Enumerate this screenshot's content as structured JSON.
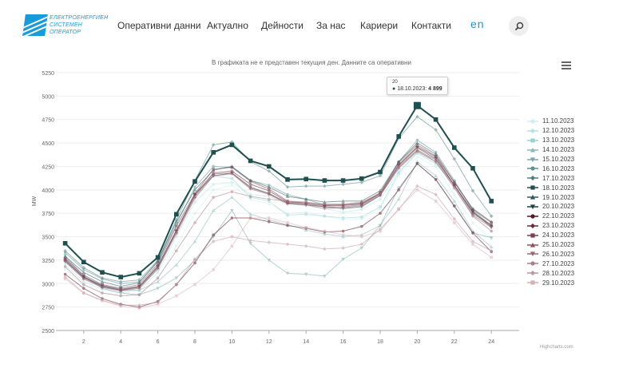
{
  "header": {
    "logo_lines": [
      "ЕЛЕКТРОЕНЕРГИЕН",
      "СИСТЕМЕН",
      "ОПЕРАТОР"
    ],
    "nav": [
      {
        "label": "Оперативни данни"
      },
      {
        "label": "Актуално"
      },
      {
        "label": "Дейности"
      },
      {
        "label": "За нас"
      },
      {
        "label": "Кариери"
      },
      {
        "label": "Контакти"
      }
    ],
    "lang": "en"
  },
  "chart": {
    "credit": "Highcharts.com"
  },
  "tooltip": {
    "header": "20",
    "series": "18.10.2023:",
    "value": "4 899"
  },
  "chart_data": {
    "type": "line",
    "title": "В графиката не е представен текущия ден. Данните са оперативни",
    "ylabel": "MW",
    "xlabel": "",
    "ylim": [
      2500,
      5250
    ],
    "yticks": [
      2500,
      2750,
      3000,
      3250,
      3500,
      3750,
      4000,
      4250,
      4500,
      4750,
      5000,
      5250
    ],
    "xlim": [
      0.5,
      25.5
    ],
    "xticks": [
      2,
      4,
      6,
      8,
      10,
      12,
      14,
      16,
      18,
      20,
      22,
      24
    ],
    "x": [
      1,
      2,
      3,
      4,
      5,
      6,
      7,
      8,
      9,
      10,
      11,
      12,
      13,
      14,
      15,
      16,
      17,
      18,
      19,
      20,
      21,
      22,
      23,
      24
    ],
    "legend": "right",
    "highlight": "18.10.2023",
    "series": [
      {
        "name": "11.10.2023",
        "color": "#cdeff0",
        "marker": "circle",
        "values": [
          3150,
          2980,
          2900,
          2870,
          2890,
          3050,
          3400,
          3750,
          4000,
          4050,
          3900,
          3850,
          3750,
          3760,
          3720,
          3680,
          3690,
          3800,
          4150,
          4350,
          4250,
          3950,
          3650,
          3480
        ]
      },
      {
        "name": "12.10.2023",
        "color": "#b3e2e4",
        "marker": "diamond",
        "values": [
          3200,
          3020,
          2940,
          2900,
          2930,
          3120,
          3500,
          3870,
          4060,
          4080,
          3950,
          3930,
          3850,
          3830,
          3800,
          3760,
          3790,
          3900,
          4200,
          4400,
          4300,
          4050,
          3720,
          3560
        ]
      },
      {
        "name": "13.10.2023",
        "color": "#98d3d5",
        "marker": "square",
        "values": [
          3250,
          3050,
          2960,
          2930,
          2950,
          3150,
          3550,
          3920,
          4150,
          4120,
          3920,
          3880,
          3730,
          3740,
          3720,
          3700,
          3710,
          3820,
          4180,
          4390,
          4280,
          4050,
          3740,
          3620
        ]
      },
      {
        "name": "14.10.2023",
        "color": "#8ab9bd",
        "marker": "triangle",
        "values": [
          3280,
          3080,
          2980,
          2930,
          2930,
          3020,
          3200,
          3450,
          3780,
          3920,
          3740,
          3680,
          3630,
          3570,
          3530,
          3500,
          3520,
          3620,
          3900,
          4300,
          4150,
          3880,
          3560,
          3390
        ]
      },
      {
        "name": "15.10.2023",
        "color": "#7aa8ab",
        "marker": "triangle-down",
        "values": [
          3300,
          3080,
          2950,
          2900,
          2880,
          2950,
          3060,
          3250,
          3500,
          3780,
          3430,
          3250,
          3110,
          3100,
          3080,
          3260,
          3380,
          3620,
          4020,
          4280,
          4110,
          3820,
          3540,
          3490
        ]
      },
      {
        "name": "16.10.2023",
        "color": "#5e9193",
        "marker": "circle",
        "values": [
          3330,
          3150,
          3050,
          3000,
          3020,
          3230,
          3630,
          4030,
          4250,
          4240,
          4100,
          4050,
          3950,
          3900,
          3840,
          3830,
          3850,
          3960,
          4300,
          4530,
          4400,
          4100,
          3780,
          3620
        ]
      },
      {
        "name": "17.10.2023",
        "color": "#4a8082",
        "marker": "diamond",
        "values": [
          3350,
          3170,
          3060,
          3020,
          3040,
          3250,
          3680,
          4100,
          4480,
          4510,
          4300,
          4200,
          4030,
          4040,
          4040,
          4060,
          4080,
          4150,
          4550,
          4780,
          4640,
          4330,
          3990,
          3720
        ]
      },
      {
        "name": "18.10.2023",
        "color": "#1f4f4f",
        "marker": "square",
        "values": [
          3430,
          3230,
          3120,
          3070,
          3110,
          3280,
          3740,
          4090,
          4400,
          4480,
          4310,
          4250,
          4110,
          4115,
          4100,
          4100,
          4120,
          4190,
          4570,
          4899,
          4750,
          4450,
          4230,
          3880
        ]
      },
      {
        "name": "19.10.2023",
        "color": "#2a5c5e",
        "marker": "triangle",
        "values": [
          3290,
          3120,
          3020,
          2970,
          3010,
          3240,
          3660,
          4000,
          4210,
          4250,
          4100,
          4030,
          3930,
          3900,
          3870,
          3880,
          3880,
          3990,
          4300,
          4500,
          4380,
          4080,
          3800,
          3660
        ]
      },
      {
        "name": "20.10.2023",
        "color": "#1d4446",
        "marker": "triangle-down",
        "values": [
          3240,
          3070,
          2980,
          2940,
          2970,
          3180,
          3560,
          3950,
          4150,
          4180,
          4030,
          3960,
          3860,
          3840,
          3820,
          3800,
          3820,
          3940,
          4260,
          4450,
          4330,
          4050,
          3770,
          3600
        ]
      },
      {
        "name": "22.10.2023",
        "color": "#5a1424",
        "marker": "circle",
        "values": [
          3100,
          2950,
          2840,
          2780,
          2750,
          2810,
          2990,
          3220,
          3520,
          3700,
          3700,
          3660,
          3620,
          3590,
          3550,
          3560,
          3610,
          3750,
          4000,
          4280,
          4110,
          3830,
          3540,
          3340
        ]
      },
      {
        "name": "23.10.2023",
        "color": "#6e2a3a",
        "marker": "diamond",
        "values": [
          3260,
          3070,
          2970,
          2930,
          2970,
          3190,
          3570,
          3950,
          4180,
          4200,
          4060,
          3990,
          3870,
          3860,
          3830,
          3840,
          3850,
          3960,
          4270,
          4460,
          4350,
          4050,
          3760,
          3620
        ]
      },
      {
        "name": "24.10.2023",
        "color": "#7f3e4d",
        "marker": "square",
        "values": [
          3270,
          3090,
          2990,
          2950,
          2990,
          3210,
          3610,
          3960,
          4220,
          4240,
          4090,
          4010,
          3880,
          3860,
          3840,
          3840,
          3860,
          3970,
          4290,
          4480,
          4360,
          4080,
          3790,
          3650
        ]
      },
      {
        "name": "25.10.2023",
        "color": "#8f5261",
        "marker": "triangle",
        "values": [
          3250,
          3060,
          2970,
          2930,
          2960,
          3170,
          3550,
          3930,
          4170,
          4180,
          4020,
          3960,
          3860,
          3850,
          3820,
          3820,
          3840,
          3950,
          4240,
          4420,
          4320,
          4050,
          3750,
          3620
        ]
      },
      {
        "name": "26.10.2023",
        "color": "#9d6672",
        "marker": "triangle-down",
        "values": [
          3230,
          3050,
          2960,
          2920,
          2950,
          3160,
          3530,
          3910,
          4150,
          4170,
          4010,
          3950,
          3850,
          3840,
          3800,
          3810,
          3830,
          3940,
          4230,
          4410,
          4300,
          4030,
          3730,
          3600
        ]
      },
      {
        "name": "27.10.2023",
        "color": "#ad7c86",
        "marker": "circle",
        "values": [
          3180,
          2990,
          2900,
          2870,
          2880,
          3060,
          3350,
          3650,
          3920,
          3980,
          3930,
          3900,
          3880,
          3870,
          3850,
          3850,
          3870,
          3960,
          4250,
          4430,
          4300,
          4020,
          3720,
          3560
        ]
      },
      {
        "name": "28.10.2023",
        "color": "#bf949c",
        "marker": "diamond",
        "values": [
          3070,
          2900,
          2820,
          2770,
          2770,
          2800,
          2990,
          3260,
          3450,
          3500,
          3460,
          3440,
          3420,
          3400,
          3370,
          3380,
          3420,
          3580,
          3790,
          4040,
          3950,
          3690,
          3450,
          3350
        ]
      },
      {
        "name": "29.10.2023",
        "color": "#d4b0b6",
        "marker": "square",
        "values": [
          3050,
          2900,
          2820,
          2760,
          2740,
          2780,
          2870,
          2990,
          3150,
          3400,
          3700,
          3700,
          3650,
          3600,
          3560,
          3520,
          3500,
          3560,
          3800,
          4000,
          3880,
          3650,
          3420,
          3280
        ]
      }
    ]
  }
}
